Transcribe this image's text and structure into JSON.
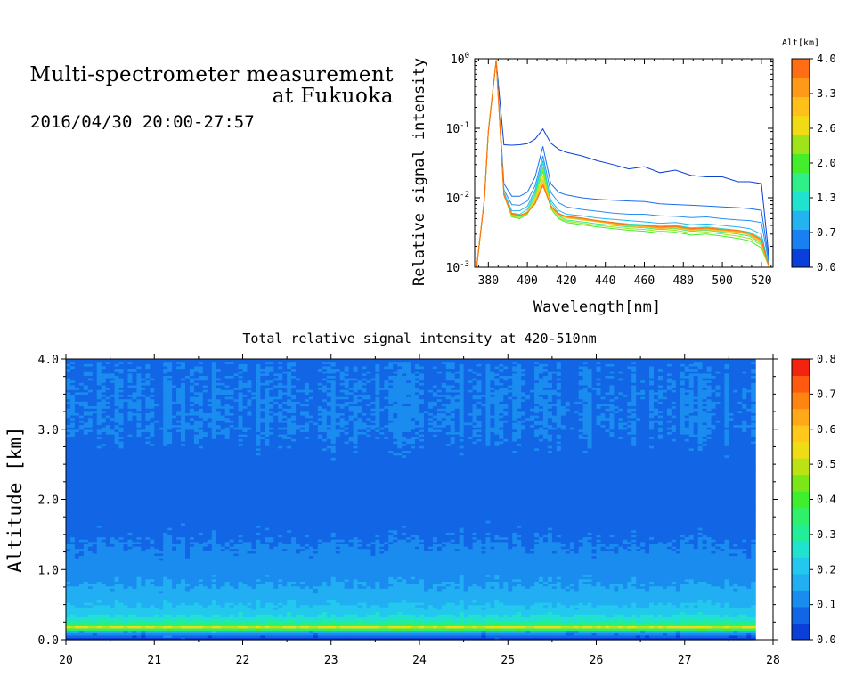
{
  "header": {
    "title_line1": "Multi-spectrometer measurement",
    "title_line2": "at Fukuoka",
    "datetime": "2016/04/30 20:00-27:57"
  },
  "chart_data": [
    {
      "type": "line",
      "xlabel": "Wavelength[nm]",
      "ylabel": "Relative signal intensity",
      "xlim": [
        373,
        526
      ],
      "ylim": [
        0.001,
        1
      ],
      "yscale": "log",
      "x_ticks": [
        380,
        400,
        420,
        440,
        460,
        480,
        500,
        520
      ],
      "y_ticks": [
        {
          "value": 1,
          "base": "10",
          "exp": "0"
        },
        {
          "value": 0.1,
          "base": "10",
          "exp": "-1"
        },
        {
          "value": 0.01,
          "base": "10",
          "exp": "-2"
        },
        {
          "value": 0.001,
          "base": "10",
          "exp": "-3"
        }
      ],
      "colorbar": {
        "title": "Alt[km]",
        "labels": [
          "4.0",
          "3.3",
          "2.6",
          "2.0",
          "1.3",
          "0.7",
          "0.0"
        ],
        "colors": [
          "#0a3fd8",
          "#1a7ff0",
          "#23b4f0",
          "#1fe2cf",
          "#2ff088",
          "#45ee2a",
          "#9fe41a",
          "#f0dc14",
          "#ffc01a",
          "#ff9a18",
          "#ff6e14"
        ]
      },
      "x": [
        374,
        378,
        380,
        384,
        388,
        392,
        396,
        400,
        404,
        408,
        412,
        416,
        420,
        428,
        436,
        444,
        452,
        460,
        468,
        476,
        484,
        492,
        500,
        508,
        514,
        520,
        524
      ],
      "series": [
        {
          "color": "#0a3fd8",
          "values": [
            0.0009,
            0.0095,
            0.09,
            0.95,
            0.058,
            0.057,
            0.058,
            0.06,
            0.07,
            0.098,
            0.061,
            0.05,
            0.045,
            0.04,
            0.034,
            0.03,
            0.026,
            0.028,
            0.023,
            0.025,
            0.021,
            0.02,
            0.02,
            0.017,
            0.017,
            0.016,
            0.0013
          ]
        },
        {
          "color": "#1a6fe8",
          "values": [
            0.0009,
            0.0095,
            0.09,
            0.95,
            0.016,
            0.0105,
            0.0105,
            0.012,
            0.02,
            0.055,
            0.016,
            0.012,
            0.011,
            0.01,
            0.0095,
            0.0092,
            0.009,
            0.0088,
            0.0082,
            0.008,
            0.0078,
            0.0076,
            0.0074,
            0.0072,
            0.007,
            0.0066,
            0.0012
          ]
        },
        {
          "color": "#2a8ff0",
          "values": [
            0.0009,
            0.0095,
            0.09,
            0.95,
            0.013,
            0.008,
            0.0078,
            0.009,
            0.015,
            0.04,
            0.012,
            0.0085,
            0.0074,
            0.0068,
            0.0064,
            0.006,
            0.0058,
            0.0058,
            0.0055,
            0.0054,
            0.0052,
            0.0053,
            0.005,
            0.0048,
            0.0047,
            0.0044,
            0.0011
          ]
        },
        {
          "color": "#23b4f0",
          "values": [
            0.0009,
            0.0095,
            0.09,
            0.95,
            0.012,
            0.0065,
            0.0065,
            0.0075,
            0.013,
            0.034,
            0.0092,
            0.0066,
            0.0058,
            0.0055,
            0.0051,
            0.0049,
            0.0047,
            0.0045,
            0.0043,
            0.0044,
            0.0041,
            0.0042,
            0.004,
            0.0038,
            0.0036,
            0.003,
            0.001
          ]
        },
        {
          "color": "#1fe2cf",
          "values": [
            0.0009,
            0.0095,
            0.09,
            0.95,
            0.011,
            0.006,
            0.0058,
            0.0068,
            0.012,
            0.032,
            0.0085,
            0.006,
            0.0052,
            0.0049,
            0.0046,
            0.0044,
            0.0042,
            0.0041,
            0.0039,
            0.004,
            0.0037,
            0.0038,
            0.0036,
            0.0034,
            0.0032,
            0.0026,
            0.0009
          ]
        },
        {
          "color": "#2ff088",
          "values": [
            0.0009,
            0.0095,
            0.09,
            0.95,
            0.011,
            0.0056,
            0.0054,
            0.0063,
            0.011,
            0.028,
            0.0078,
            0.0055,
            0.0048,
            0.0045,
            0.0042,
            0.004,
            0.0038,
            0.0037,
            0.0035,
            0.0036,
            0.0033,
            0.0034,
            0.0032,
            0.003,
            0.0028,
            0.0022,
            0.0009
          ]
        },
        {
          "color": "#45ee2a",
          "values": [
            0.0009,
            0.0095,
            0.09,
            0.95,
            0.011,
            0.0053,
            0.005,
            0.0058,
            0.01,
            0.024,
            0.007,
            0.005,
            0.0044,
            0.0041,
            0.0038,
            0.0036,
            0.0034,
            0.0033,
            0.0031,
            0.0032,
            0.0029,
            0.003,
            0.0028,
            0.0026,
            0.0024,
            0.0019,
            0.0008
          ]
        },
        {
          "color": "#9fe41a",
          "values": [
            0.0009,
            0.0095,
            0.09,
            0.95,
            0.011,
            0.0054,
            0.0052,
            0.006,
            0.01,
            0.026,
            0.0072,
            0.0052,
            0.0046,
            0.0043,
            0.004,
            0.0038,
            0.0036,
            0.0035,
            0.0033,
            0.0034,
            0.0031,
            0.0032,
            0.003,
            0.0028,
            0.0026,
            0.0021,
            0.0009
          ]
        },
        {
          "color": "#f0dc14",
          "values": [
            0.0009,
            0.0095,
            0.09,
            0.95,
            0.011,
            0.0058,
            0.0055,
            0.0062,
            0.0095,
            0.02,
            0.0076,
            0.0058,
            0.0053,
            0.005,
            0.0047,
            0.0044,
            0.0041,
            0.004,
            0.0038,
            0.0039,
            0.0036,
            0.0037,
            0.0035,
            0.0034,
            0.0031,
            0.0025,
            0.0009
          ]
        },
        {
          "color": "#ffc01a",
          "values": [
            0.0009,
            0.0095,
            0.09,
            0.95,
            0.011,
            0.0057,
            0.0054,
            0.006,
            0.009,
            0.018,
            0.0074,
            0.0056,
            0.0051,
            0.0048,
            0.0045,
            0.0042,
            0.0039,
            0.0038,
            0.0036,
            0.0037,
            0.0034,
            0.0035,
            0.0033,
            0.0032,
            0.0029,
            0.0023,
            0.0009
          ]
        },
        {
          "color": "#ff9a18",
          "values": [
            0.0009,
            0.0095,
            0.09,
            0.95,
            0.011,
            0.0058,
            0.0055,
            0.006,
            0.0085,
            0.016,
            0.0075,
            0.0058,
            0.0053,
            0.005,
            0.0046,
            0.0043,
            0.004,
            0.0039,
            0.0037,
            0.0038,
            0.0035,
            0.0036,
            0.0034,
            0.0033,
            0.003,
            0.0024,
            0.0009
          ]
        },
        {
          "color": "#ff6e14",
          "values": [
            0.0009,
            0.0095,
            0.09,
            0.95,
            0.011,
            0.0059,
            0.0056,
            0.0061,
            0.0082,
            0.015,
            0.0076,
            0.0059,
            0.0054,
            0.0051,
            0.0047,
            0.0044,
            0.0041,
            0.004,
            0.0038,
            0.0039,
            0.0036,
            0.0037,
            0.0035,
            0.0034,
            0.0031,
            0.0025,
            0.001
          ]
        }
      ]
    },
    {
      "type": "heatmap",
      "title": "Total relative signal intensity at 420-510nm",
      "ylabel": "Altitude [km]",
      "xlim": [
        20,
        28
      ],
      "ylim": [
        0,
        4
      ],
      "data_xrange": [
        20,
        27.8
      ],
      "x_ticks": [
        "20",
        "21",
        "22",
        "23",
        "24",
        "25",
        "26",
        "27",
        "28"
      ],
      "y_ticks": [
        "0.0",
        "1.0",
        "2.0",
        "3.0",
        "4.0"
      ],
      "colorbar": {
        "labels": [
          "0.0",
          "0.1",
          "0.2",
          "0.3",
          "0.4",
          "0.5",
          "0.6",
          "0.7",
          "0.8"
        ],
        "range": [
          0,
          0.8
        ],
        "colors": [
          "#0a3fd8",
          "#1266e6",
          "#1a8cf0",
          "#22aef2",
          "#23c8ee",
          "#1fe2cf",
          "#22ee9a",
          "#2ff06a",
          "#3fef2f",
          "#7ae818",
          "#bde214",
          "#f0dc14",
          "#ffc81a",
          "#ffa818",
          "#ff8412",
          "#ff5a10",
          "#f22410"
        ]
      },
      "altitude_profile": [
        {
          "alt": 0.0,
          "value": 0.0
        },
        {
          "alt": 0.13,
          "value": 0.18
        },
        {
          "alt": 0.16,
          "value": 0.45
        },
        {
          "alt": 0.18,
          "value": 0.55
        },
        {
          "alt": 0.2,
          "value": 0.38
        },
        {
          "alt": 0.25,
          "value": 0.3
        },
        {
          "alt": 0.32,
          "value": 0.25
        },
        {
          "alt": 0.45,
          "value": 0.2
        },
        {
          "alt": 0.6,
          "value": 0.17
        },
        {
          "alt": 0.8,
          "value": 0.14
        },
        {
          "alt": 1.0,
          "value": 0.12
        },
        {
          "alt": 1.3,
          "value": 0.1
        },
        {
          "alt": 1.6,
          "value": 0.08
        },
        {
          "alt": 2.0,
          "value": 0.07
        },
        {
          "alt": 2.5,
          "value": 0.075
        },
        {
          "alt": 3.0,
          "value": 0.095
        },
        {
          "alt": 3.5,
          "value": 0.095
        },
        {
          "alt": 3.98,
          "value": 0.09
        },
        {
          "alt": 4.0,
          "value": 0.02
        }
      ]
    }
  ]
}
